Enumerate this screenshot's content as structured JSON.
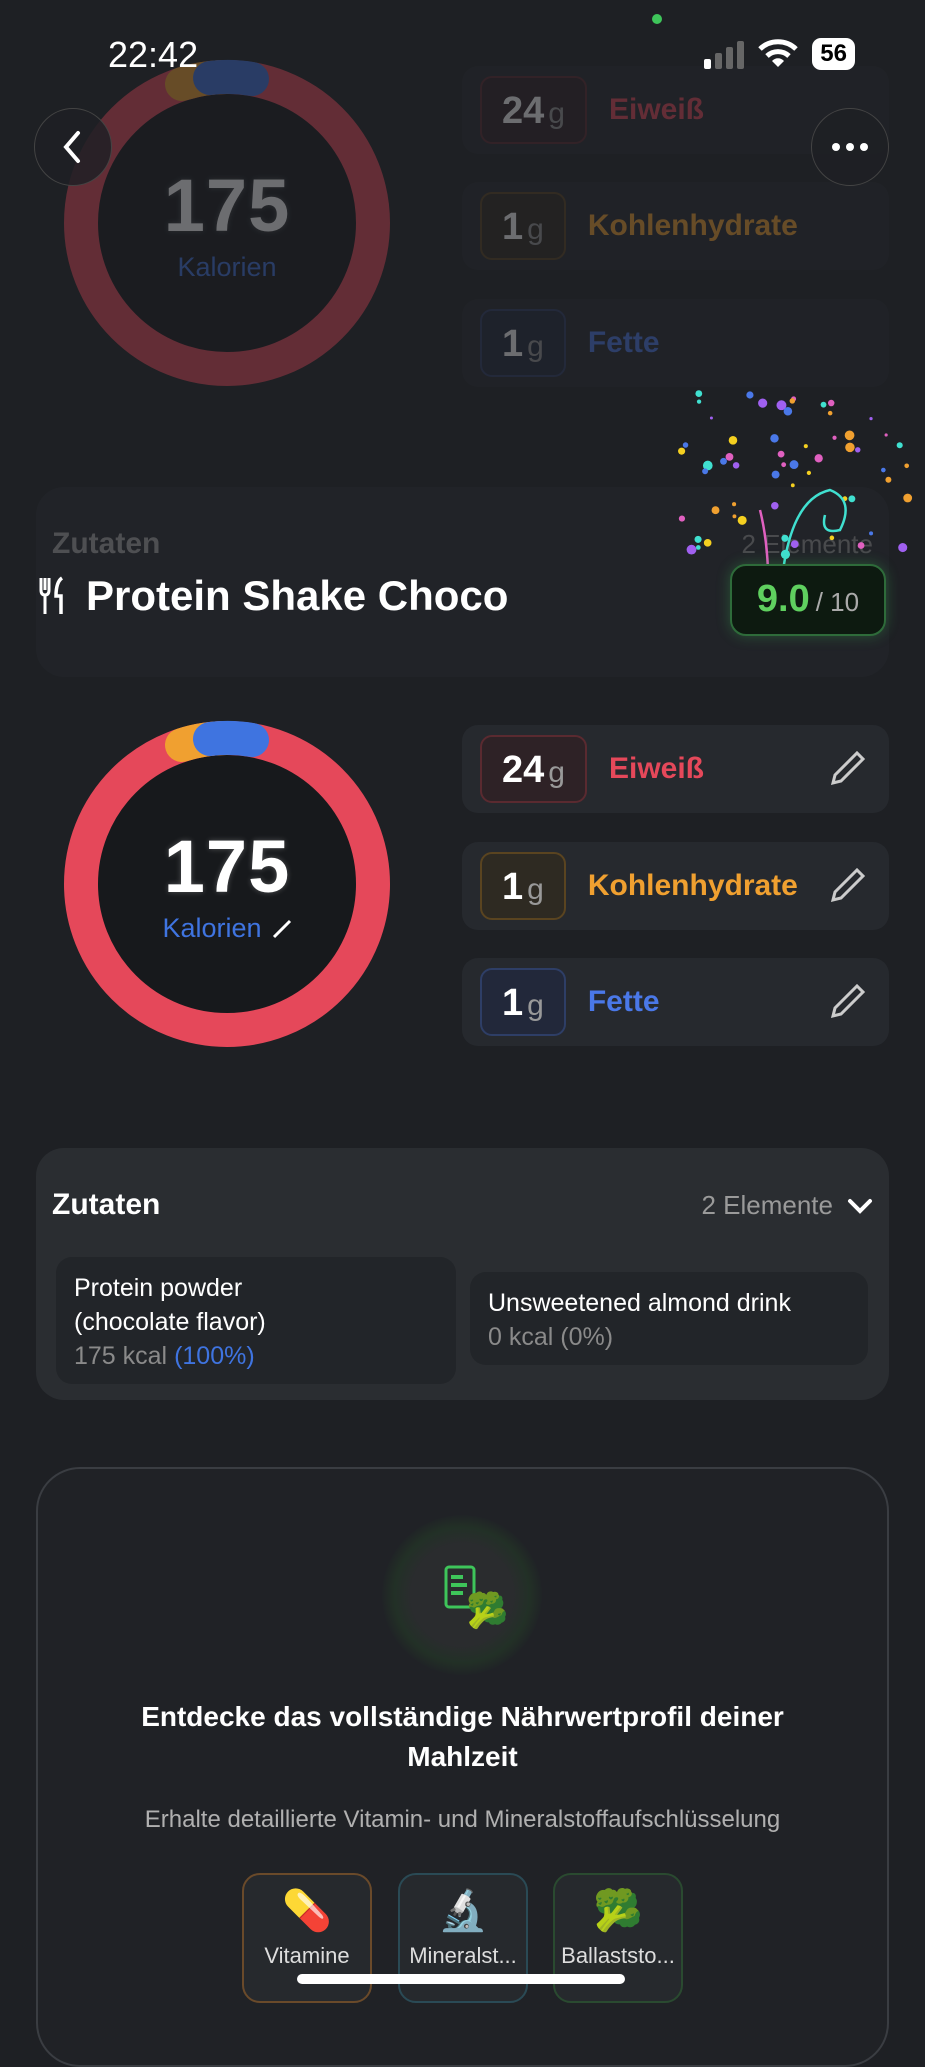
{
  "status_bar": {
    "time": "22:42",
    "battery": "56"
  },
  "meal": {
    "title": "Protein Shake Choco",
    "score": "9.0",
    "score_max": "/ 10",
    "calories": "175",
    "calories_label": "Kalorien"
  },
  "macros": [
    {
      "value": "24",
      "unit": "g",
      "name": "Eiweiß",
      "color": "#e5485a"
    },
    {
      "value": "1",
      "unit": "g",
      "name": "Kohlenhydrate",
      "color": "#f0a030"
    },
    {
      "value": "1",
      "unit": "g",
      "name": "Fette",
      "color": "#4a78e8"
    }
  ],
  "ingredients": {
    "title": "Zutaten",
    "count": "2 Elemente",
    "items": [
      {
        "name": "Protein powder (chocolate flavor)",
        "kcal": "175 kcal",
        "pct": "(100%)"
      },
      {
        "name": "Unsweetened almond drink",
        "kcal": "0 kcal",
        "pct": "(0%)"
      }
    ]
  },
  "nutrition_promo": {
    "heading": "Entdecke das vollständige Nährwertprofil deiner Mahlzeit",
    "subtitle": "Erhalte detaillierte Vitamin- und Mineralstoffaufschlüsselung",
    "chips": [
      {
        "label": "Vitamine",
        "icon": "pill-icon"
      },
      {
        "label": "Mineralst...",
        "icon": "microscope-icon"
      },
      {
        "label": "Ballaststo...",
        "icon": "broccoli-icon"
      }
    ]
  }
}
